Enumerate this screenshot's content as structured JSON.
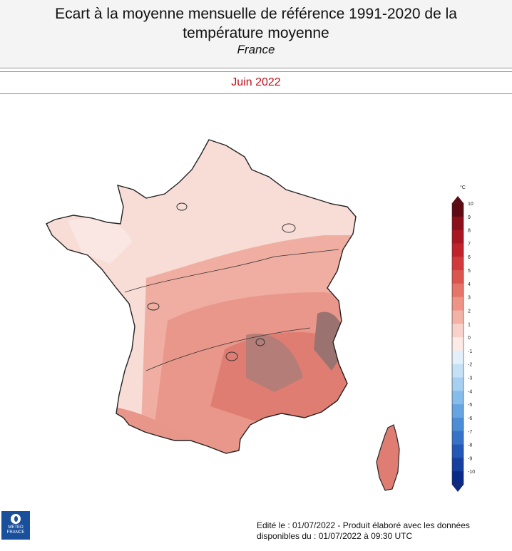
{
  "header": {
    "title_line1": "Ecart à la moyenne mensuelle de référence 1991-2020 de la",
    "title_line2": "température moyenne",
    "subtitle": "France"
  },
  "period": "Juin 2022",
  "legend": {
    "unit": "°C",
    "values": [
      "10",
      "9",
      "8",
      "7",
      "6",
      "5",
      "4",
      "3",
      "2",
      "1",
      "0",
      "-1",
      "-2",
      "-3",
      "-4",
      "-5",
      "-6",
      "-7",
      "-8",
      "-9",
      "-10"
    ],
    "colors": [
      "#5e0a14",
      "#8c0f1c",
      "#a81622",
      "#c0232c",
      "#d13a3c",
      "#dc5650",
      "#e57569",
      "#ed9485",
      "#f3b2a6",
      "#f8d2ca",
      "#fbeae6",
      "#e3f0fa",
      "#c5e1f6",
      "#a6cff0",
      "#86bce9",
      "#68a5e0",
      "#4c8dd6",
      "#3673c8",
      "#2258b6",
      "#1640a0",
      "#0a2a88"
    ]
  },
  "footer": {
    "line1": "Edité le : 01/07/2022 - Produit élaboré avec les données",
    "line2": "disponibles du : 01/07/2022 à 09:30 UTC"
  },
  "logo": {
    "line1": "METEO",
    "line2": "FRANCE"
  }
}
